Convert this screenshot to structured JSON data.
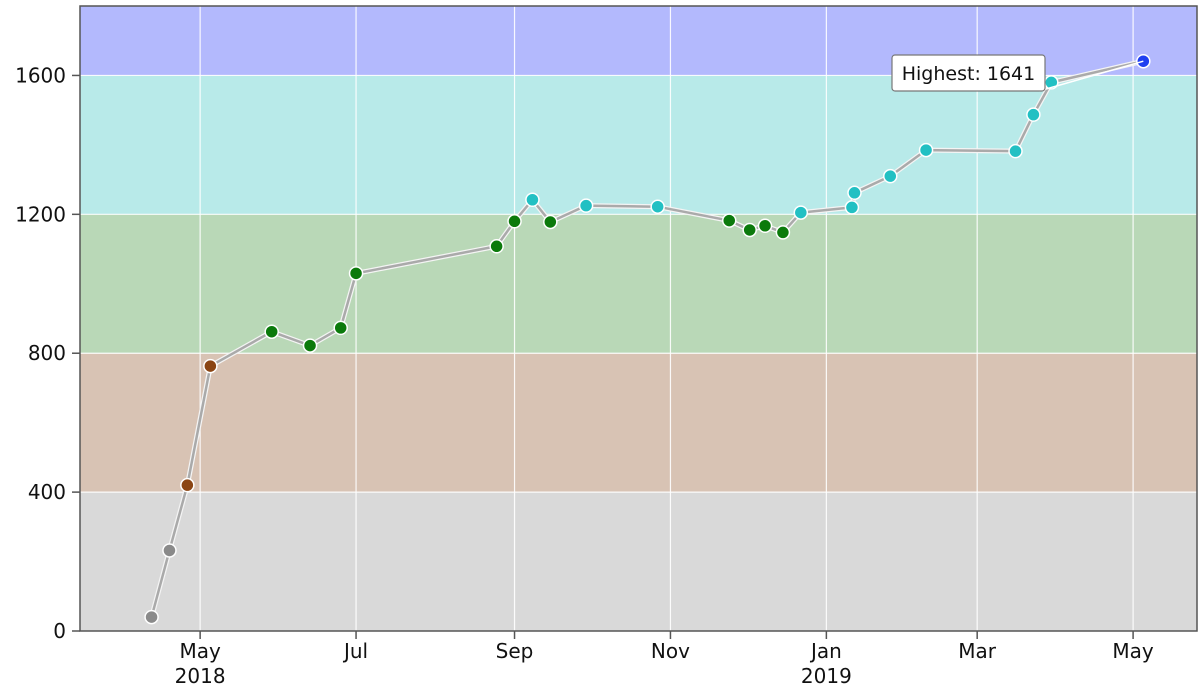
{
  "chart_data": {
    "type": "line",
    "title": "",
    "xlabel": "",
    "ylabel": "",
    "x_axis": {
      "type": "date",
      "range": [
        "2018-03-15",
        "2019-05-26"
      ],
      "ticks": [
        {
          "date": "2018-05-01",
          "label": "May",
          "sublabel": "2018"
        },
        {
          "date": "2018-07-01",
          "label": "Jul",
          "sublabel": ""
        },
        {
          "date": "2018-09-01",
          "label": "Sep",
          "sublabel": ""
        },
        {
          "date": "2018-11-01",
          "label": "Nov",
          "sublabel": ""
        },
        {
          "date": "2019-01-01",
          "label": "Jan",
          "sublabel": "2019"
        },
        {
          "date": "2019-03-01",
          "label": "Mar",
          "sublabel": ""
        },
        {
          "date": "2019-05-01",
          "label": "May",
          "sublabel": ""
        }
      ]
    },
    "y_axis": {
      "range": [
        0,
        1800
      ],
      "ticks": [
        0,
        400,
        800,
        1200,
        1600
      ]
    },
    "grid": true,
    "bands": [
      {
        "from": 0,
        "to": 400,
        "color": "#d9d9d9"
      },
      {
        "from": 400,
        "to": 800,
        "color": "#d8c3b4"
      },
      {
        "from": 800,
        "to": 1200,
        "color": "#b9d8b7"
      },
      {
        "from": 1200,
        "to": 1600,
        "color": "#b8eae9"
      },
      {
        "from": 1600,
        "to": 1800,
        "color": "#b3b9fd"
      }
    ],
    "line_color": "#aaaaaa",
    "marker_colors": {
      "below_400": "#8a8a8a",
      "400_to_800": "#8b4513",
      "800_to_1200": "#0b7a0b",
      "1200_to_1600": "#22c0c3",
      "1600_plus": "#1f3ff0"
    },
    "series": [
      {
        "points": [
          {
            "x": "2018-04-12",
            "y": 40
          },
          {
            "x": "2018-04-19",
            "y": 232
          },
          {
            "x": "2018-04-26",
            "y": 420
          },
          {
            "x": "2018-05-05",
            "y": 763
          },
          {
            "x": "2018-05-29",
            "y": 862
          },
          {
            "x": "2018-06-13",
            "y": 822
          },
          {
            "x": "2018-06-25",
            "y": 873
          },
          {
            "x": "2018-07-01",
            "y": 1030
          },
          {
            "x": "2018-08-25",
            "y": 1108
          },
          {
            "x": "2018-09-01",
            "y": 1180
          },
          {
            "x": "2018-09-08",
            "y": 1242
          },
          {
            "x": "2018-09-15",
            "y": 1178
          },
          {
            "x": "2018-09-29",
            "y": 1225
          },
          {
            "x": "2018-10-27",
            "y": 1222
          },
          {
            "x": "2018-11-24",
            "y": 1182
          },
          {
            "x": "2018-12-02",
            "y": 1155
          },
          {
            "x": "2018-12-08",
            "y": 1167
          },
          {
            "x": "2018-12-15",
            "y": 1148
          },
          {
            "x": "2018-12-22",
            "y": 1205
          },
          {
            "x": "2019-01-11",
            "y": 1220
          },
          {
            "x": "2019-01-12",
            "y": 1262
          },
          {
            "x": "2019-01-26",
            "y": 1310
          },
          {
            "x": "2019-02-09",
            "y": 1385
          },
          {
            "x": "2019-03-16",
            "y": 1382
          },
          {
            "x": "2019-03-23",
            "y": 1487
          },
          {
            "x": "2019-03-30",
            "y": 1580
          },
          {
            "x": "2019-05-05",
            "y": 1641
          }
        ]
      }
    ],
    "annotations": [
      {
        "text": "Highest: 1641",
        "x": "2019-05-05",
        "y": 1641
      }
    ]
  }
}
